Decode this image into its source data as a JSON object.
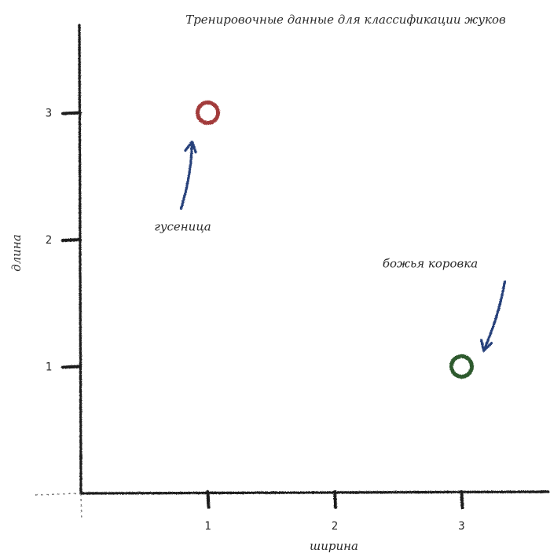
{
  "chart_data": {
    "type": "scatter",
    "title": "Тренировочные данные для классификации жуков",
    "xlabel": "ширина",
    "ylabel": "длина",
    "xlim": [
      0,
      3.7
    ],
    "ylim": [
      0,
      3.5
    ],
    "xticks": [
      1,
      2,
      3
    ],
    "yticks": [
      1,
      2,
      3
    ],
    "grid": false,
    "points": [
      {
        "x": 1,
        "y": 3,
        "label": "гусеница",
        "color": "#a23a3a"
      },
      {
        "x": 3,
        "y": 1,
        "label": "божья коровка",
        "color": "#2f5a2f"
      }
    ]
  },
  "colors": {
    "axis": "#1a1a1a",
    "arrow": "#27407a",
    "caterpillar": "#a23a3a",
    "ladybug": "#2f5a2f"
  }
}
